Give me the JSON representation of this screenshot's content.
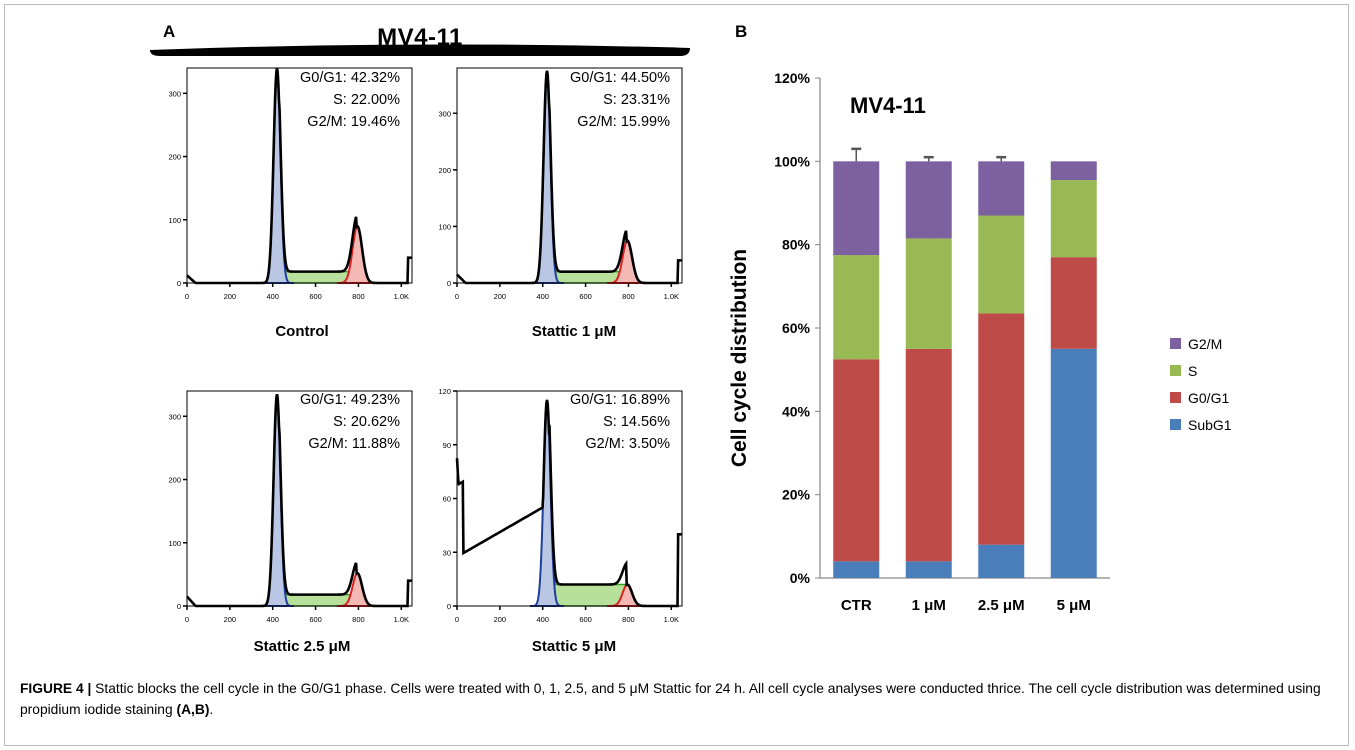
{
  "panel_a": {
    "letter": "A",
    "banner_title": "MV4-11",
    "x_ticks": [
      "0",
      "200",
      "400",
      "600",
      "800",
      "1.0K"
    ],
    "colors": {
      "g1_fill": "#b9c7e4",
      "g1_line": "#1f3f9e",
      "s_fill": "#b7e19a",
      "s_line": "#3b9b25",
      "g2_fill": "#f4b9b5",
      "g2_line": "#e02020"
    },
    "histograms": [
      {
        "label": "Control",
        "y_ticks": [
          "0",
          "100",
          "200",
          "300"
        ],
        "ymax": 340,
        "stats": [
          {
            "name": "G0/G1: ",
            "value": "42.32%"
          },
          {
            "name": "S: ",
            "value": "22.00%"
          },
          {
            "name": "G2/M: ",
            "value": "19.46%"
          }
        ],
        "debris": 8,
        "g1_height": 340,
        "s_level": 18,
        "g2_height": 90
      },
      {
        "label": "Stattic 1 μM",
        "y_ticks": [
          "0",
          "100",
          "200",
          "300"
        ],
        "ymax": 380,
        "stats": [
          {
            "name": "G0/G1: ",
            "value": "44.50%"
          },
          {
            "name": "S: ",
            "value": "23.31%"
          },
          {
            "name": "G2/M: ",
            "value": "15.99%"
          }
        ],
        "debris": 10,
        "g1_height": 375,
        "s_level": 20,
        "g2_height": 75
      },
      {
        "label": "Stattic 2.5 μM",
        "y_ticks": [
          "0",
          "100",
          "200",
          "300"
        ],
        "ymax": 340,
        "stats": [
          {
            "name": "G0/G1: ",
            "value": "49.23%"
          },
          {
            "name": "S: ",
            "value": "20.62%"
          },
          {
            "name": "G2/M: ",
            "value": "11.88%"
          }
        ],
        "debris": 10,
        "g1_height": 335,
        "s_level": 18,
        "g2_height": 52
      },
      {
        "label": "Stattic 5 μM",
        "y_ticks": [
          "0",
          "30",
          "60",
          "90",
          "120"
        ],
        "ymax": 120,
        "stats": [
          {
            "name": "G0/G1: ",
            "value": "16.89%"
          },
          {
            "name": "S: ",
            "value": "14.56%"
          },
          {
            "name": "G2/M: ",
            "value": "3.50%"
          }
        ],
        "debris": 55,
        "g1_height": 115,
        "s_level": 12,
        "g2_height": 12
      }
    ]
  },
  "chart_data": {
    "type": "bar",
    "stacked": true,
    "panel_letter": "B",
    "title": "MV4-11",
    "ylabel": "Cell cycle distribution",
    "categories": [
      "CTR",
      "1 μM",
      "2.5 μM",
      "5 μM"
    ],
    "y_ticks": [
      "0%",
      "20%",
      "40%",
      "60%",
      "80%",
      "100%",
      "120%"
    ],
    "ylim": [
      0,
      120
    ],
    "legend_position": "right",
    "series": [
      {
        "name": "SubG1",
        "color": "#4a7ebb",
        "values": [
          4,
          4,
          8,
          55
        ],
        "errors": [
          1.5,
          2,
          1,
          0
        ]
      },
      {
        "name": "G0/G1",
        "color": "#be4b48",
        "values": [
          48.5,
          51,
          55.5,
          22
        ],
        "errors": [
          2,
          0.5,
          0.5,
          0
        ]
      },
      {
        "name": "S",
        "color": "#98b954",
        "values": [
          25,
          26.5,
          23.5,
          18.5
        ],
        "errors": [
          0.3,
          0.5,
          0.8,
          0
        ]
      },
      {
        "name": "G2/M",
        "color": "#7d60a0",
        "values": [
          22.5,
          18.5,
          13,
          4.5
        ],
        "errors": [
          3,
          1,
          1,
          0
        ]
      }
    ]
  },
  "caption": {
    "label": "FIGURE 4 |",
    "text": " Stattic blocks the cell cycle in the G0/G1 phase. Cells were treated with 0, 1, 2.5, and 5 μM Stattic for 24 h. All cell cycle analyses were conducted thrice. The cell cycle distribution was determined using propidium iodide staining ",
    "ref": "(A,B)",
    "end": "."
  }
}
